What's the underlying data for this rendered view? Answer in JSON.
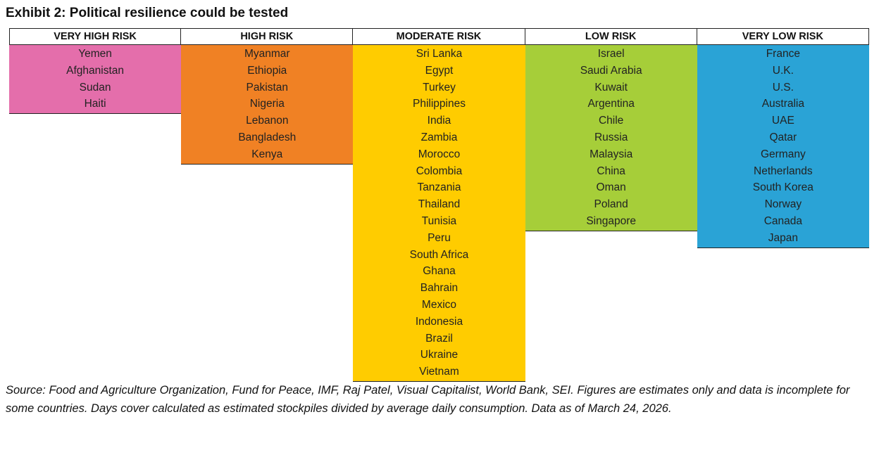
{
  "title": "Exhibit 2: Political resilience could be tested",
  "chart_data": {
    "type": "table",
    "columns": [
      {
        "label": "VERY HIGH RISK",
        "color": "#E46EAB",
        "countries": [
          "Yemen",
          "Afghanistan",
          "Sudan",
          "Haiti"
        ]
      },
      {
        "label": "HIGH RISK",
        "color": "#F08124",
        "countries": [
          "Myanmar",
          "Ethiopia",
          "Pakistan",
          "Nigeria",
          "Lebanon",
          "Bangladesh",
          "Kenya"
        ]
      },
      {
        "label": "MODERATE RISK",
        "color": "#FFCC00",
        "countries": [
          "Sri Lanka",
          "Egypt",
          "Turkey",
          "Philippines",
          "India",
          "Zambia",
          "Morocco",
          "Colombia",
          "Tanzania",
          "Thailand",
          "Tunisia",
          "Peru",
          "South Africa",
          "Ghana",
          "Bahrain",
          "Mexico",
          "Indonesia",
          "Brazil",
          "Ukraine",
          "Vietnam"
        ]
      },
      {
        "label": "LOW RISK",
        "color": "#A6CE39",
        "countries": [
          "Israel",
          "Saudi Arabia",
          "Kuwait",
          "Argentina",
          "Chile",
          "Russia",
          "Malaysia",
          "China",
          "Oman",
          "Poland",
          "Singapore"
        ]
      },
      {
        "label": "VERY LOW RISK",
        "color": "#2AA3D6",
        "countries": [
          "France",
          "U.K.",
          "U.S.",
          "Australia",
          "UAE",
          "Qatar",
          "Germany",
          "Netherlands",
          "South Korea",
          "Norway",
          "Canada",
          "Japan"
        ]
      }
    ]
  },
  "source": "Source: Food and Agriculture Organization, Fund for Peace, IMF, Raj Patel, Visual Capitalist, World Bank, SEI. Figures are estimates only and data is incomplete for some countries. Days cover calculated as estimated stockpiles divided by average daily consumption. Data as of March 24, 2026."
}
